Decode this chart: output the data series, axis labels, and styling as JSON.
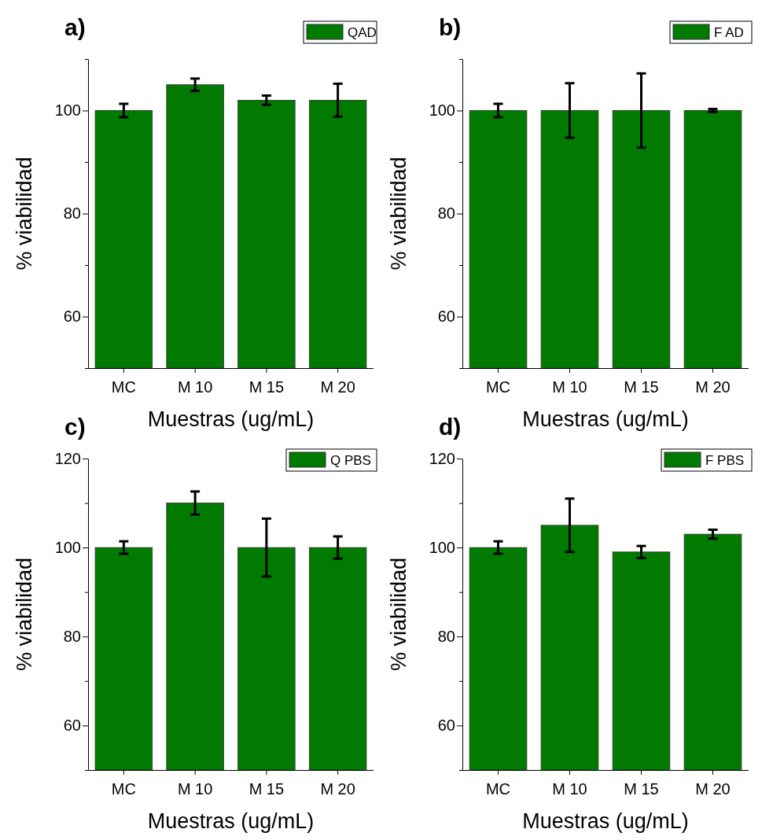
{
  "chart_data": [
    {
      "type": "bar",
      "title": "a)",
      "xlabel": "Muestras (ug/mL)",
      "ylabel": "% viabilidad",
      "categories": [
        "MC",
        "M 10",
        "M 15",
        "M 20"
      ],
      "series": [
        {
          "name": "QAD",
          "color": "#007a00",
          "values": [
            100,
            105,
            102,
            102
          ],
          "errors": [
            1.3,
            1.2,
            0.9,
            3.2
          ]
        }
      ],
      "ylim": [
        50,
        110
      ],
      "yticks": [
        {
          "value": 50,
          "label": null
        },
        60,
        {
          "value": 70,
          "label": null
        },
        80,
        {
          "value": 90,
          "label": null
        },
        100,
        {
          "value": 110,
          "label": null
        }
      ],
      "legend": "top right"
    },
    {
      "type": "bar",
      "title": "b)",
      "xlabel": "Muestras (ug/mL)",
      "ylabel": "% viabilidad",
      "categories": [
        "MC",
        "M 10",
        "M 15",
        "M 20"
      ],
      "series": [
        {
          "name": "F AD",
          "color": "#007a00",
          "values": [
            100,
            100,
            100,
            100
          ],
          "errors": [
            1.3,
            5.3,
            7.2,
            0.3
          ]
        }
      ],
      "ylim": [
        50,
        110
      ],
      "yticks": [
        {
          "value": 50,
          "label": null
        },
        60,
        {
          "value": 70,
          "label": null
        },
        80,
        {
          "value": 90,
          "label": null
        },
        100,
        {
          "value": 110,
          "label": null
        }
      ],
      "legend": "top right"
    },
    {
      "type": "bar",
      "title": "c)",
      "xlabel": "Muestras (ug/mL)",
      "ylabel": "% viabilidad",
      "categories": [
        "MC",
        "M 10",
        "M 15",
        "M 20"
      ],
      "series": [
        {
          "name": "Q PBS",
          "color": "#007a00",
          "values": [
            100,
            110,
            100,
            100
          ],
          "errors": [
            1.4,
            2.6,
            6.5,
            2.5
          ]
        }
      ],
      "ylim": [
        50,
        120
      ],
      "yticks": [
        {
          "value": 50,
          "label": null
        },
        60,
        {
          "value": 70,
          "label": null
        },
        80,
        {
          "value": 90,
          "label": null
        },
        100,
        {
          "value": 110,
          "label": null
        },
        120
      ],
      "legend": "top right"
    },
    {
      "type": "bar",
      "title": "d)",
      "xlabel": "Muestras (ug/mL)",
      "ylabel": "% viabilidad",
      "categories": [
        "MC",
        "M 10",
        "M 15",
        "M 20"
      ],
      "series": [
        {
          "name": "F PBS",
          "color": "#007a00",
          "values": [
            100,
            105,
            99,
            103
          ],
          "errors": [
            1.4,
            6,
            1.35,
            1
          ]
        }
      ],
      "ylim": [
        50,
        120
      ],
      "yticks": [
        {
          "value": 50,
          "label": null
        },
        60,
        {
          "value": 70,
          "label": null
        },
        80,
        {
          "value": 90,
          "label": null
        },
        100,
        {
          "value": 110,
          "label": null
        },
        120
      ],
      "legend": "top right"
    }
  ]
}
